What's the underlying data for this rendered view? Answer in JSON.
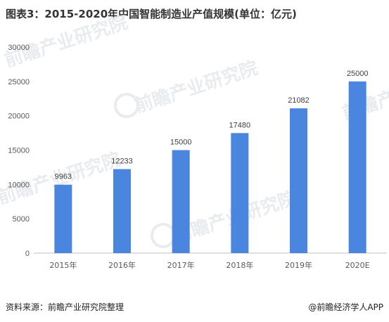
{
  "title": "图表3：2015-2020年中国智能制造业产值规模(单位：亿元)",
  "footer": {
    "source": "资料来源：前瞻产业研究院整理",
    "credit": "@前瞻经济学人APP"
  },
  "watermark": {
    "text": "前瞻产业研究院"
  },
  "colors": {
    "bar": "#4A86E0",
    "axis": "#bfbfbf",
    "text": "#595959"
  },
  "chart_data": {
    "type": "bar",
    "title": "图表3：2015-2020年中国智能制造业产值规模(单位：亿元)",
    "categories": [
      "2015年",
      "2016年",
      "2017年",
      "2018年",
      "2019年",
      "2020E"
    ],
    "values": [
      9963,
      12233,
      15000,
      17480,
      21082,
      25000
    ],
    "data_labels": [
      "9963",
      "12233",
      "15000",
      "17480",
      "21082",
      "25000"
    ],
    "yticks": [
      0,
      5000,
      10000,
      15000,
      20000,
      25000,
      30000
    ],
    "ytick_labels": [
      "0",
      "5000",
      "10000",
      "15000",
      "20000",
      "25000",
      "30000"
    ],
    "ylim": [
      0,
      30000
    ],
    "grid": false,
    "legend": "none"
  }
}
